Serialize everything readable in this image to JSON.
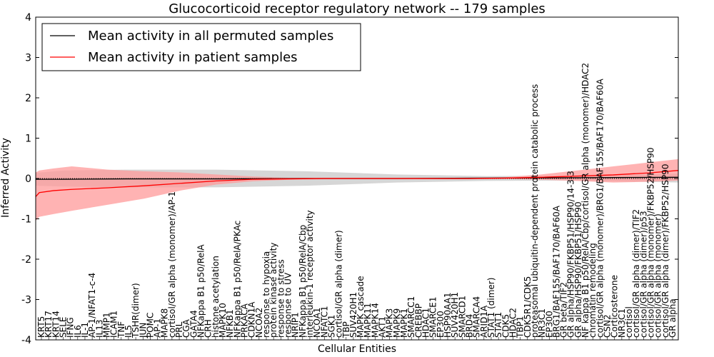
{
  "chart_data": {
    "type": "line",
    "title": "Glucocorticoid receptor regulatory network -- 179 samples",
    "xlabel": "Cellular Entities",
    "ylabel": "Inferred Activity",
    "ylim": [
      -4,
      4
    ],
    "yticks": [
      -4,
      -3,
      -2,
      -1,
      0,
      1,
      2,
      3,
      4
    ],
    "grid": false,
    "legend_position": "top-left",
    "colors": {
      "permuted": "#000000",
      "patient": "#ff0000",
      "patient_band": "#ff9999",
      "permuted_band": "#bbbbbb"
    },
    "entities": [
      "KRT5",
      "KRT17",
      "KRT14",
      "SELE",
      "IFNG",
      "IL6",
      "IL-1",
      "AP-1/NFAT1-c-4",
      "IL13",
      "MMP1",
      "ICAM1",
      "TNF",
      "IL5",
      "TSHR(dimer)",
      "JUN",
      "POMC",
      "AP-1",
      "MAPK8",
      "cortisol/GR alpha (monomer)/AP-1",
      "PRL",
      "CGA",
      "GATA4",
      "NFKappa B1 p50/RelA",
      "CRH",
      "histone acetylation",
      "MAPK10",
      "NFKB1",
      "NFKappa B1 p50/RelA/PKAc",
      "PRKACA",
      "CDKN1A",
      "NCOA2",
      "response to hypoxia",
      "protein kinase activity",
      "response to stress",
      "response to UV",
      "NRIP1",
      "NFKappa B1 p50/RelA/Cbp",
      "interleukin-1 receptor activity",
      "NCOA1",
      "NFATC1",
      "SGK1",
      "cortisol/GR alpha (dimer)",
      "TBP",
      "SUV420H1",
      "MAPK cascade",
      "MAPK11",
      "MAPK14",
      "AKT1",
      "MAPK3",
      "MAPK9",
      "MAPK1",
      "SMARCC1",
      "CREBBP",
      "HDAC1",
      "SMARCE1",
      "EP300",
      "HSP90AA1",
      "SUV420H1",
      "SMARCD1",
      "BRD4",
      "SMARCA4",
      "ARID1A",
      "STAT1 (dimer)",
      "STAT1",
      "CDK5",
      "HDAC2",
      "TBP1",
      "CDK5R1/CDK5",
      "proteasomal ubiquitin-dependent protein catabolic process",
      "NR3C1",
      "EP300",
      "BRG1/BAF155/BAF170/BAF60A",
      "GR beta/TIF2",
      "GR alpha/HSP90/FKBP51/HSP90/14-3-3",
      "GR alpha/HSP90/FKBP51/HSP90",
      "NF kappa B1 p50/RelA/Cbp/cortisol/GR alpha (monomer)/HDAC2",
      "chromatin remodeling",
      "cortisol/GR alpha (monomer)/BRG1/BAF155/BAF170/BAF60A",
      "CSN2",
      "Corticosterone",
      "NR3C1",
      "cortisol",
      "cortisol/GR alpha (dimer)/TIF2",
      "cortisol/GR alpha (dimer)/p53",
      "cortisol/GR alpha (monomer)/FKBP52/HSP90",
      "cortisol/GR alpha (monomer)",
      "cortisol/GR alpha (dimer)/FKBP52/HSP90",
      "GR alpha"
    ],
    "series": [
      {
        "name": "Mean activity in all permuted samples",
        "x": [
          0,
          8,
          25,
          50,
          75,
          100,
          125,
          150,
          178
        ],
        "values": [
          -0.02,
          -0.02,
          -0.01,
          -0.01,
          0.0,
          0.0,
          0.01,
          0.02,
          0.03
        ],
        "band_lower": [
          -0.18,
          -0.2,
          -0.22,
          -0.22,
          -0.18,
          -0.1,
          -0.06,
          -0.05,
          -0.1
        ],
        "band_upper": [
          0.14,
          0.2,
          0.22,
          0.22,
          0.18,
          0.1,
          0.06,
          0.07,
          0.12
        ]
      },
      {
        "name": "Mean activity in patient samples",
        "x": [
          0,
          1,
          5,
          10,
          20,
          30,
          40,
          50,
          60,
          70,
          80,
          90,
          100,
          110,
          120,
          130,
          140,
          150,
          160,
          170,
          178
        ],
        "values": [
          -0.45,
          -0.35,
          -0.3,
          -0.27,
          -0.23,
          -0.18,
          -0.12,
          -0.06,
          -0.02,
          -0.01,
          0.0,
          0.0,
          0.0,
          0.0,
          0.0,
          0.01,
          0.03,
          0.06,
          0.09,
          0.14,
          0.2
        ],
        "band_lower": [
          -1.05,
          -0.95,
          -0.88,
          -0.8,
          -0.65,
          -0.5,
          -0.3,
          -0.15,
          -0.07,
          -0.03,
          -0.02,
          -0.02,
          -0.02,
          -0.02,
          -0.02,
          -0.01,
          -0.03,
          -0.06,
          -0.1,
          -0.08,
          -0.05
        ],
        "band_upper": [
          0.15,
          0.2,
          0.25,
          0.3,
          0.22,
          0.18,
          0.15,
          0.1,
          0.05,
          0.02,
          0.02,
          0.02,
          0.02,
          0.02,
          0.02,
          0.03,
          0.1,
          0.2,
          0.3,
          0.4,
          0.48
        ]
      }
    ]
  }
}
